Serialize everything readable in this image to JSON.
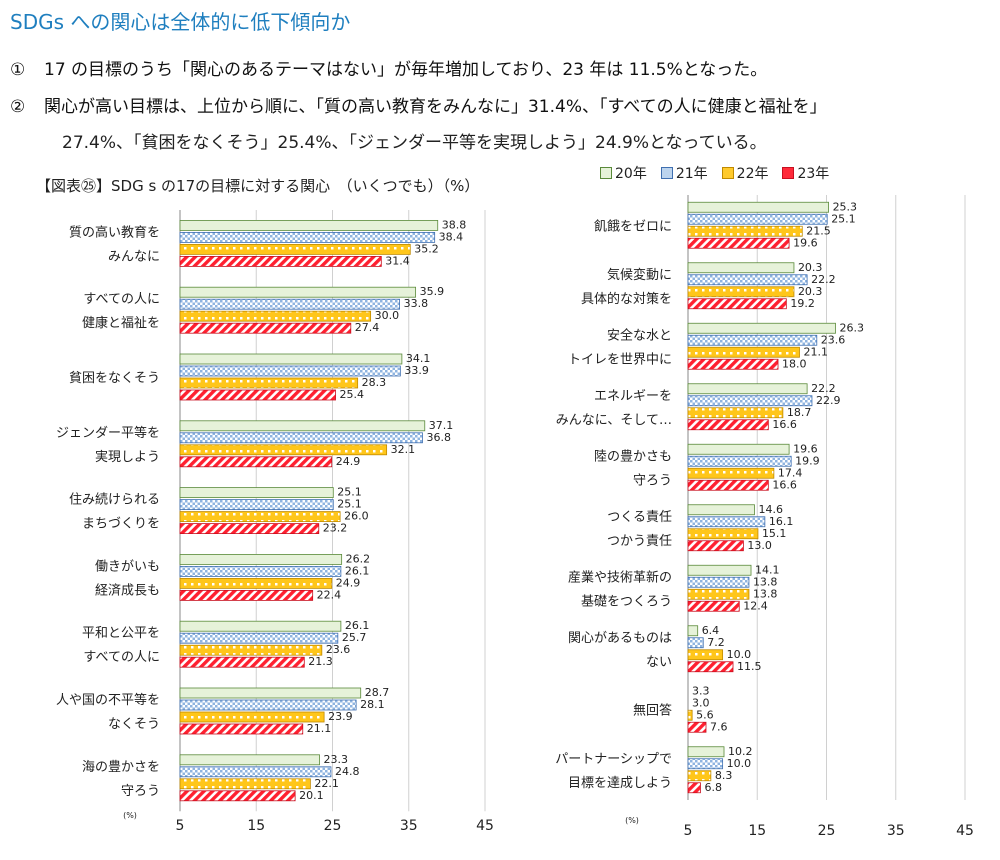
{
  "header": {
    "title": "SDGs への関心は全体的に低下傾向か",
    "point1_num": "①",
    "point1": "17 の目標のうち「関心のあるテーマはない」が毎年増加しており、23 年は 11.5%となった。",
    "point2_num": "②",
    "point2_a": "関心が高い目標は、上位から順に、「質の高い教育をみんなに」31.4%、「すべての人に健康と福祉を」",
    "point2_b": "27.4%、「貧困をなくそう」25.4%、「ジェンダー平等を実現しよう」24.9%となっている。"
  },
  "figure": {
    "title": "【図表㉕】SDG s の17の目標に対する関心　（いくつでも）（%）",
    "unit_label": "(%)"
  },
  "legend": [
    {
      "name": "20年",
      "color": "#e6f2d9",
      "border": "#5a8a3a",
      "pattern": "solid"
    },
    {
      "name": "21年",
      "color": "#bcd4ee",
      "border": "#3f6fb0",
      "pattern": "dots"
    },
    {
      "name": "22年",
      "color": "#ffca2c",
      "border": "#c08a00",
      "pattern": "squares"
    },
    {
      "name": "23年",
      "color": "#ff2a3a",
      "border": "#c81020",
      "pattern": "stripes"
    }
  ],
  "chart_data": [
    {
      "type": "bar",
      "orientation": "horizontal",
      "xlim": [
        5,
        45
      ],
      "xticks": [
        5,
        15,
        25,
        35,
        45
      ],
      "categories": [
        [
          "質の高い教育を",
          "みんなに"
        ],
        [
          "すべての人に",
          "健康と福祉を"
        ],
        [
          "貧困をなくそう"
        ],
        [
          "ジェンダー平等を",
          "実現しよう"
        ],
        [
          "住み続けられる",
          "まちづくりを"
        ],
        [
          "働きがいも",
          "経済成長も"
        ],
        [
          "平和と公平を",
          "すべての人に"
        ],
        [
          "人や国の不平等を",
          "なくそう"
        ],
        [
          "海の豊かさを",
          "守ろう"
        ]
      ],
      "series": [
        {
          "name": "20年",
          "values": [
            38.8,
            35.9,
            34.1,
            37.1,
            25.1,
            26.2,
            26.1,
            28.7,
            23.3
          ]
        },
        {
          "name": "21年",
          "values": [
            38.4,
            33.8,
            33.9,
            36.8,
            25.1,
            26.1,
            25.7,
            28.1,
            24.8
          ]
        },
        {
          "name": "22年",
          "values": [
            35.2,
            30.0,
            28.3,
            32.1,
            26.0,
            24.9,
            23.6,
            23.9,
            22.1
          ]
        },
        {
          "name": "23年",
          "values": [
            31.4,
            27.4,
            25.4,
            24.9,
            23.2,
            22.4,
            21.3,
            21.1,
            20.1
          ]
        }
      ]
    },
    {
      "type": "bar",
      "orientation": "horizontal",
      "xlim": [
        5,
        45
      ],
      "xticks": [
        5,
        15,
        25,
        35,
        45
      ],
      "categories": [
        [
          "飢餓をゼロに"
        ],
        [
          "気候変動に",
          "具体的な対策を"
        ],
        [
          "安全な水と",
          "トイレを世界中に"
        ],
        [
          "エネルギーを",
          "みんなに、そして…"
        ],
        [
          "陸の豊かさも",
          "守ろう"
        ],
        [
          "つくる責任",
          "つかう責任"
        ],
        [
          "産業や技術革新の",
          "基礎をつくろう"
        ],
        [
          "関心があるものは",
          "ない"
        ],
        [
          "無回答"
        ],
        [
          "パートナーシップで",
          "目標を達成しよう"
        ]
      ],
      "series": [
        {
          "name": "20年",
          "values": [
            25.3,
            20.3,
            26.3,
            22.2,
            19.6,
            14.6,
            14.1,
            6.4,
            3.3,
            10.2
          ]
        },
        {
          "name": "21年",
          "values": [
            25.1,
            22.2,
            23.6,
            22.9,
            19.9,
            16.1,
            13.8,
            7.2,
            3.0,
            10.0
          ]
        },
        {
          "name": "22年",
          "values": [
            21.5,
            20.3,
            21.1,
            18.7,
            17.4,
            15.1,
            13.8,
            10.0,
            5.6,
            8.3
          ]
        },
        {
          "name": "23年",
          "values": [
            19.6,
            19.2,
            18.0,
            16.6,
            16.6,
            13.0,
            12.4,
            11.5,
            7.6,
            6.8
          ]
        }
      ]
    }
  ]
}
